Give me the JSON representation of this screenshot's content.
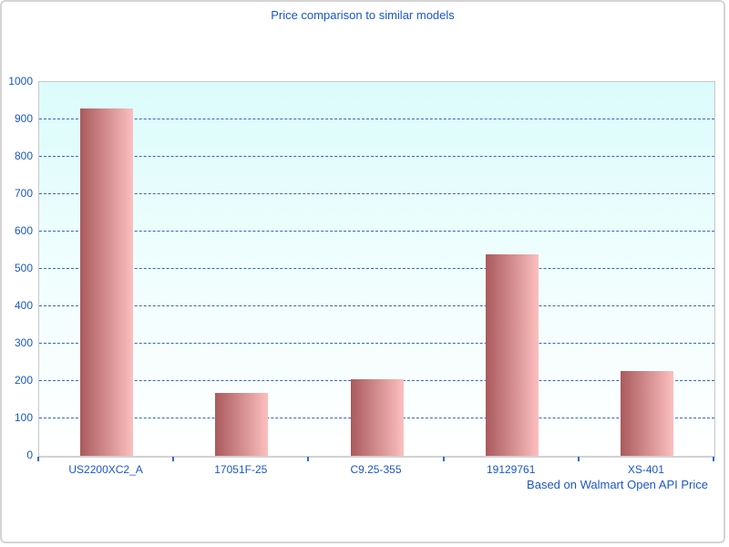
{
  "title": "Price comparison to similar models",
  "footer_note": "Based on Walmart Open API Price",
  "chart_data": {
    "type": "bar",
    "categories": [
      "US2200XC2_A",
      "17051F-25",
      "C9.25-355",
      "19129761",
      "XS-401"
    ],
    "values": [
      930,
      168,
      206,
      540,
      226
    ],
    "title": "Price comparison to similar models",
    "xlabel": "",
    "ylabel": "",
    "ylim": [
      0,
      1000
    ],
    "y_ticks": [
      0,
      100,
      200,
      300,
      400,
      500,
      600,
      700,
      800,
      900,
      1000
    ],
    "grid": "horizontal-dashed",
    "legend": "none",
    "annotation": "Based on Walmart Open API Price"
  },
  "colors": {
    "text_blue": "#1a56cc",
    "gridline_blue": "#3366cc",
    "tick_blue": "#2e6bd8",
    "bar_gradient_left": "#aa5a5c",
    "bar_gradient_right": "#fcbfbf",
    "plot_bg_top": "#dbfbfb",
    "plot_bg_bottom": "#ffffff",
    "axis_line_gray": "#d2d2d2",
    "plot_border_gray": "#c9c9c9"
  }
}
